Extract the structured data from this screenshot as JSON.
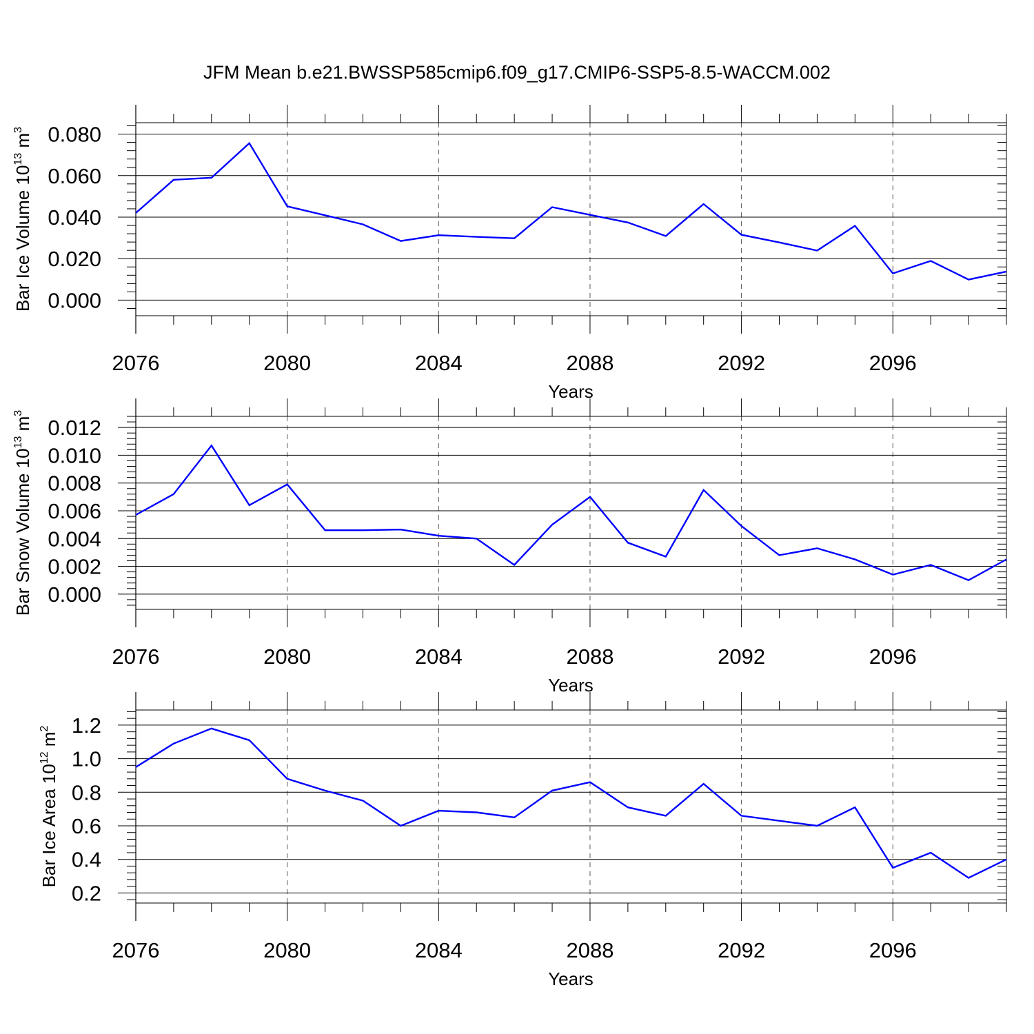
{
  "title": "JFM Mean b.e21.BWSSP585cmip6.f09_g17.CMIP6-SSP5-8.5-WACCM.002",
  "line_color": "#0000ff",
  "grid_color": "#555555",
  "chart_data": [
    {
      "type": "line",
      "xlabel": "Years",
      "ylabel": {
        "text": "Bar Ice Volume 10",
        "sup": "13",
        "unit": " m",
        "unit_sup": "3"
      },
      "xlim": [
        2076,
        2099
      ],
      "ylim": [
        -0.0075,
        0.0855
      ],
      "y_ticks": [
        "0.000",
        "0.020",
        "0.040",
        "0.060",
        "0.080"
      ],
      "y_tick_values": [
        0,
        0.02,
        0.04,
        0.06,
        0.08
      ],
      "y_minor_step": 0.004,
      "x_ticks": [
        "2076",
        "2080",
        "2084",
        "2088",
        "2092",
        "2096"
      ],
      "x_tick_values": [
        2076,
        2080,
        2084,
        2088,
        2092,
        2096
      ],
      "grid": "vertical dashed at major x ticks",
      "x": [
        2076,
        2077,
        2078,
        2079,
        2080,
        2081,
        2082,
        2083,
        2084,
        2085,
        2086,
        2087,
        2088,
        2089,
        2090,
        2091,
        2092,
        2093,
        2094,
        2095,
        2096,
        2097,
        2098,
        2099
      ],
      "series": [
        {
          "values": [
            0.042,
            0.058,
            0.059,
            0.0756,
            0.0452,
            0.0409,
            0.0365,
            0.0285,
            0.0313,
            0.0305,
            0.0298,
            0.0448,
            0.0411,
            0.0374,
            0.0309,
            0.0463,
            0.0315,
            0.0278,
            0.0239,
            0.0358,
            0.0129,
            0.0189,
            0.0099,
            0.0138
          ]
        }
      ]
    },
    {
      "type": "line",
      "xlabel": "Years",
      "ylabel": {
        "text": "Bar Snow Volume 10",
        "sup": "13",
        "unit": " m",
        "unit_sup": "3"
      },
      "xlim": [
        2076,
        2099
      ],
      "ylim": [
        -0.0011,
        0.0128
      ],
      "y_ticks": [
        "0.000",
        "0.002",
        "0.004",
        "0.006",
        "0.008",
        "0.010",
        "0.012"
      ],
      "y_tick_values": [
        0,
        0.002,
        0.004,
        0.006,
        0.008,
        0.01,
        0.012
      ],
      "y_minor_step": 0.0004,
      "x_ticks": [
        "2076",
        "2080",
        "2084",
        "2088",
        "2092",
        "2096"
      ],
      "x_tick_values": [
        2076,
        2080,
        2084,
        2088,
        2092,
        2096
      ],
      "grid": "vertical dashed at major x ticks",
      "x": [
        2076,
        2077,
        2078,
        2079,
        2080,
        2081,
        2082,
        2083,
        2084,
        2085,
        2086,
        2087,
        2088,
        2089,
        2090,
        2091,
        2092,
        2093,
        2094,
        2095,
        2096,
        2097,
        2098,
        2099
      ],
      "series": [
        {
          "values": [
            0.0057,
            0.0072,
            0.0107,
            0.0064,
            0.0079,
            0.0046,
            0.0046,
            0.00465,
            0.0042,
            0.004,
            0.0021,
            0.005,
            0.007,
            0.0037,
            0.0027,
            0.0075,
            0.0049,
            0.0028,
            0.0033,
            0.0025,
            0.0014,
            0.0021,
            0.001,
            0.0025
          ]
        }
      ]
    },
    {
      "type": "line",
      "xlabel": "Years",
      "ylabel": {
        "text": "Bar Ice Area 10",
        "sup": "12",
        "unit": " m",
        "unit_sup": "2"
      },
      "xlim": [
        2076,
        2099
      ],
      "ylim": [
        0.14,
        1.29
      ],
      "y_ticks": [
        "0.2",
        "0.4",
        "0.6",
        "0.8",
        "1.0",
        "1.2"
      ],
      "y_tick_values": [
        0.2,
        0.4,
        0.6,
        0.8,
        1.0,
        1.2
      ],
      "y_minor_step": 0.04,
      "x_ticks": [
        "2076",
        "2080",
        "2084",
        "2088",
        "2092",
        "2096"
      ],
      "x_tick_values": [
        2076,
        2080,
        2084,
        2088,
        2092,
        2096
      ],
      "grid": "vertical dashed at major x ticks",
      "x": [
        2076,
        2077,
        2078,
        2079,
        2080,
        2081,
        2082,
        2083,
        2084,
        2085,
        2086,
        2087,
        2088,
        2089,
        2090,
        2091,
        2092,
        2093,
        2094,
        2095,
        2096,
        2097,
        2098,
        2099
      ],
      "series": [
        {
          "values": [
            0.95,
            1.09,
            1.18,
            1.11,
            0.88,
            0.81,
            0.75,
            0.6,
            0.69,
            0.68,
            0.65,
            0.81,
            0.86,
            0.71,
            0.66,
            0.85,
            0.66,
            0.63,
            0.6,
            0.71,
            0.35,
            0.44,
            0.29,
            0.4
          ]
        }
      ]
    }
  ]
}
